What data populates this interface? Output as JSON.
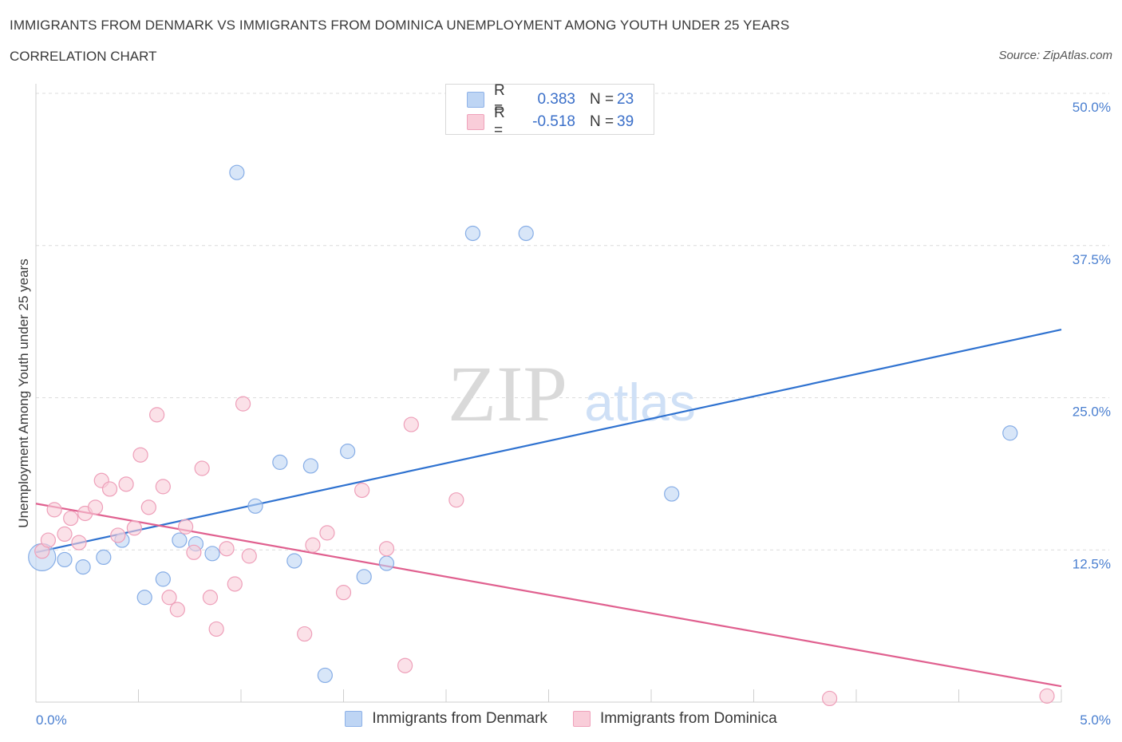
{
  "header": {
    "title": "IMMIGRANTS FROM DENMARK VS IMMIGRANTS FROM DOMINICA UNEMPLOYMENT AMONG YOUTH UNDER 25 YEARS",
    "subtitle": "CORRELATION CHART",
    "source": "Source: ZipAtlas.com"
  },
  "watermark": {
    "zip": "ZIP",
    "atlas": "atlas"
  },
  "legend": {
    "rows": [
      {
        "r_label": "R =",
        "r_value": "0.383",
        "n_label": "N =",
        "n_value": "23",
        "color": "#a9c7f0"
      },
      {
        "r_label": "R =",
        "r_value": "-0.518",
        "n_label": "N =",
        "n_value": "39",
        "color": "#f5b8cb"
      }
    ]
  },
  "bottom_legend": [
    {
      "label": "Immigrants from Denmark",
      "color": "#a9c7f0"
    },
    {
      "label": "Immigrants from Dominica",
      "color": "#f5b8cb"
    }
  ],
  "chart_data": {
    "type": "scatter",
    "ylabel": "Unemployment Among Youth under 25 years",
    "xlim": [
      0,
      5
    ],
    "ylim": [
      0,
      50
    ],
    "x_tick_labels": [
      "0.0%",
      "5.0%"
    ],
    "y_ticks": [
      12.5,
      25.0,
      37.5,
      50.0
    ],
    "y_tick_labels": [
      "12.5%",
      "25.0%",
      "37.5%",
      "50.0%"
    ],
    "grid": true,
    "colors": {
      "denmark": "#a9c7f0",
      "denmark_line": "#2f72d0",
      "dominica": "#f5b8cb",
      "dominica_line": "#e0608f"
    },
    "series": [
      {
        "name": "Immigrants from Denmark",
        "points": [
          [
            0.03,
            11.9
          ],
          [
            0.14,
            11.7
          ],
          [
            0.23,
            11.1
          ],
          [
            0.33,
            11.9
          ],
          [
            0.42,
            13.3
          ],
          [
            0.53,
            8.6
          ],
          [
            0.62,
            10.1
          ],
          [
            0.7,
            13.3
          ],
          [
            0.78,
            13.0
          ],
          [
            0.86,
            12.2
          ],
          [
            0.98,
            43.5
          ],
          [
            1.07,
            16.1
          ],
          [
            1.19,
            19.7
          ],
          [
            1.26,
            11.6
          ],
          [
            1.34,
            19.4
          ],
          [
            1.41,
            2.2
          ],
          [
            1.52,
            20.6
          ],
          [
            1.6,
            10.3
          ],
          [
            1.71,
            11.4
          ],
          [
            2.13,
            38.5
          ],
          [
            2.39,
            38.5
          ],
          [
            3.1,
            17.1
          ],
          [
            4.75,
            22.1
          ]
        ],
        "trend": {
          "x": [
            0,
            5
          ],
          "y": [
            12.3,
            30.6
          ]
        }
      },
      {
        "name": "Immigrants from Dominica",
        "points": [
          [
            0.03,
            12.4
          ],
          [
            0.06,
            13.3
          ],
          [
            0.09,
            15.8
          ],
          [
            0.14,
            13.8
          ],
          [
            0.17,
            15.1
          ],
          [
            0.21,
            13.1
          ],
          [
            0.24,
            15.5
          ],
          [
            0.29,
            16.0
          ],
          [
            0.32,
            18.2
          ],
          [
            0.36,
            17.5
          ],
          [
            0.4,
            13.7
          ],
          [
            0.44,
            17.9
          ],
          [
            0.48,
            14.3
          ],
          [
            0.51,
            20.3
          ],
          [
            0.55,
            16.0
          ],
          [
            0.59,
            23.6
          ],
          [
            0.62,
            17.7
          ],
          [
            0.65,
            8.6
          ],
          [
            0.69,
            7.6
          ],
          [
            0.73,
            14.4
          ],
          [
            0.77,
            12.3
          ],
          [
            0.81,
            19.2
          ],
          [
            0.85,
            8.6
          ],
          [
            0.88,
            6.0
          ],
          [
            0.93,
            12.6
          ],
          [
            0.97,
            9.7
          ],
          [
            1.01,
            24.5
          ],
          [
            1.04,
            12.0
          ],
          [
            1.31,
            5.6
          ],
          [
            1.35,
            12.9
          ],
          [
            1.42,
            13.9
          ],
          [
            1.5,
            9.0
          ],
          [
            1.59,
            17.4
          ],
          [
            1.71,
            12.6
          ],
          [
            1.8,
            3.0
          ],
          [
            1.83,
            22.8
          ],
          [
            2.05,
            16.6
          ],
          [
            3.87,
            0.3
          ],
          [
            4.93,
            0.5
          ]
        ],
        "trend": {
          "x": [
            0,
            5
          ],
          "y": [
            16.3,
            1.3
          ]
        }
      }
    ]
  }
}
